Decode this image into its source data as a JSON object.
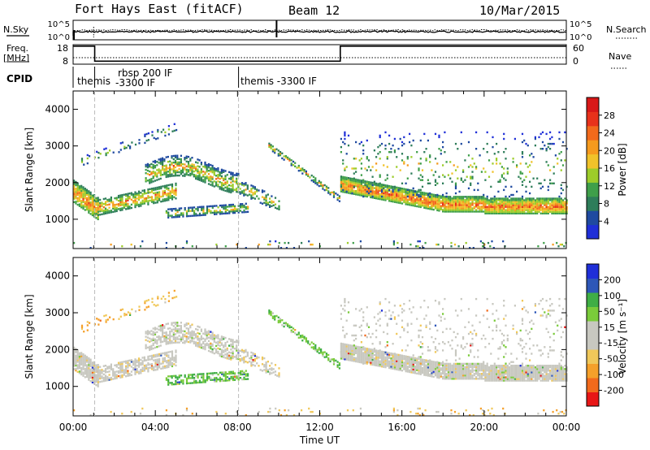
{
  "header": {
    "title": "Fort Hays East (fitACF)",
    "beam": "Beam 12",
    "date": "10/Mar/2015"
  },
  "strip_labels": {
    "nsky": "N.Sky",
    "nsearch": "N.Search",
    "freq_line1": "Freq.",
    "freq_line2": "[MHz]",
    "nave": "Nave",
    "cpid": "CPID"
  },
  "cpid_labels": [
    "themis",
    "rbsp 200 IF",
    "-3300 IF",
    "themis -3300 IF"
  ],
  "colors": {
    "power": [
      "#1f2fd8",
      "#1f4aa0",
      "#2e7d5a",
      "#3f9f4a",
      "#9dcc2a",
      "#f0c22a",
      "#f59a1e",
      "#f26a1c",
      "#e8321b",
      "#d81818"
    ],
    "velocity": [
      "#e81616",
      "#f26a1c",
      "#f5a02a",
      "#f0c85a",
      "#c8c8c0",
      "#c8c8c0",
      "#7acb3a",
      "#3fae45",
      "#2e57b8",
      "#1f2fd8"
    ]
  },
  "chart_data": [
    {
      "type": "line",
      "name": "noise-strip",
      "left_ticks": [
        "10^5",
        "10^0"
      ],
      "right_ticks": [
        "10^5",
        "10^0"
      ],
      "series": [
        {
          "name": "N.Sky",
          "style": "solid"
        },
        {
          "name": "N.Search",
          "style": "dotted"
        }
      ]
    },
    {
      "type": "line",
      "name": "frequency-nave-strip",
      "left_ticks": [
        18,
        8
      ],
      "right_ticks": [
        60,
        0
      ],
      "x": [
        "00:00",
        "01:00",
        "13:00",
        "24:00"
      ],
      "series": [
        {
          "name": "Freq.",
          "values": [
            18,
            8,
            18,
            18
          ]
        },
        {
          "name": "Nave",
          "values": [
            10,
            10,
            10,
            10
          ]
        }
      ]
    },
    {
      "type": "heatmap",
      "name": "power-panel",
      "ylabel": "Slant Range [km]",
      "yticks": [
        1000,
        2000,
        3000,
        4000
      ],
      "ylim": [
        200,
        4500
      ],
      "xlim": [
        "00:00",
        "24:00"
      ],
      "colorbar_label": "Power [dB]",
      "colorbar_ticks": [
        4,
        8,
        12,
        16,
        20,
        24,
        28
      ],
      "colorbar_range": [
        0,
        32
      ]
    },
    {
      "type": "heatmap",
      "name": "velocity-panel",
      "ylabel": "Slant Range [km]",
      "yticks": [
        1000,
        2000,
        3000,
        4000
      ],
      "ylim": [
        200,
        4500
      ],
      "xlabel": "Time UT",
      "xticks": [
        "00:00",
        "04:00",
        "08:00",
        "12:00",
        "16:00",
        "20:00",
        "00:00"
      ],
      "xlim": [
        "00:00",
        "24:00"
      ],
      "colorbar_label": "Velocity [m s⁻¹]",
      "colorbar_ticks": [
        -200,
        -100,
        -50,
        -15,
        15,
        50,
        100,
        200
      ]
    }
  ]
}
